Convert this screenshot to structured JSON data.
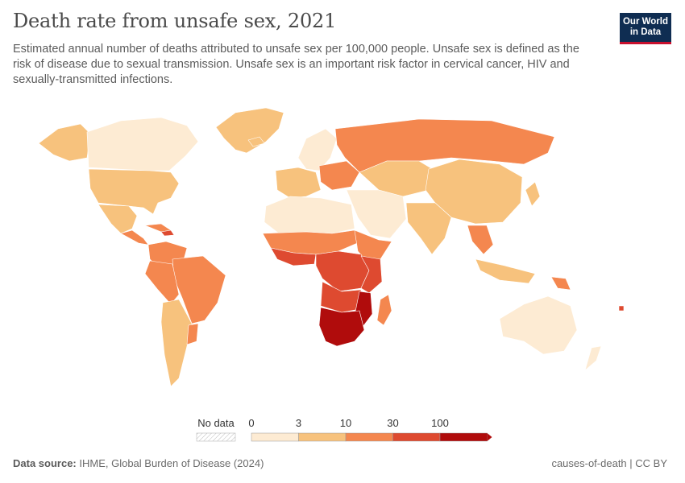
{
  "title": "Death rate from unsafe sex, 2021",
  "subtitle": "Estimated annual number of deaths attributed to unsafe sex per 100,000 people. Unsafe sex is defined as the risk of disease due to sexual transmission. Unsafe sex is an important risk factor in cervical cancer, HIV and sexually-transmitted infections.",
  "logo": {
    "line1": "Our World",
    "line2": "in Data"
  },
  "legend": {
    "no_data_label": "No data",
    "ticks": [
      "0",
      "3",
      "10",
      "30",
      "100"
    ],
    "colors": [
      "#fdebd3",
      "#f7c27d",
      "#f4874f",
      "#de4a30",
      "#b00c0c"
    ]
  },
  "footer": {
    "source_label": "Data source:",
    "source_text": "IHME, Global Burden of Disease (2024)",
    "right_text": "causes-of-death | CC BY"
  }
}
